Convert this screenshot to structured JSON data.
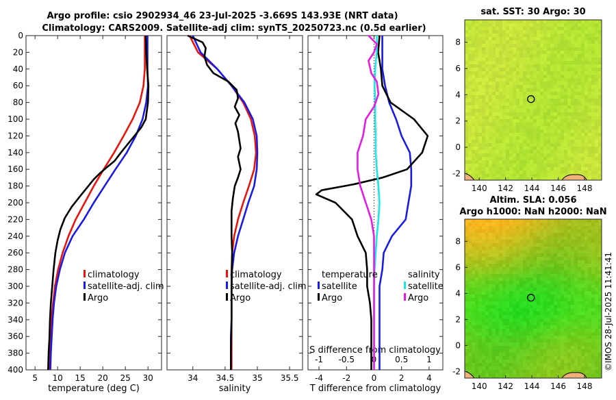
{
  "title": {
    "line1": "Argo profile: csio 2902934_46 23-Jul-2025 -3.669S 143.93E (NRT data)",
    "line2": "Climatology: CARS2009. Satellite-adj clim: synTS_20250723.nc (0.5d earlier)"
  },
  "footer": "©IMOS 28-Jul-2025 11:41:41",
  "colors": {
    "climatology": "#e8150d",
    "satellite": "#1a1ae6",
    "argo": "#000000",
    "argo_sal_diff": "#e619e6",
    "sat_sal_diff": "#19e6e6"
  },
  "chart_data": [
    {
      "type": "line",
      "name": "temperature",
      "xlabel": "temperature (deg C)",
      "ylabel": "depth",
      "xlim": [
        3,
        33
      ],
      "ylim": [
        0,
        400
      ],
      "xticks": [
        5,
        10,
        15,
        20,
        25,
        30
      ],
      "yticks": [
        0,
        20,
        40,
        60,
        80,
        100,
        120,
        140,
        160,
        180,
        200,
        220,
        240,
        260,
        280,
        300,
        320,
        340,
        360,
        380,
        400
      ],
      "legend": [
        "climatology",
        "satellite-adj. clim",
        "Argo"
      ],
      "series": [
        {
          "name": "climatology",
          "color": "#e8150d",
          "points": [
            [
              29.3,
              0
            ],
            [
              29.3,
              40
            ],
            [
              29.0,
              60
            ],
            [
              28.2,
              80
            ],
            [
              26.6,
              100
            ],
            [
              24.6,
              120
            ],
            [
              22.5,
              140
            ],
            [
              20.2,
              160
            ],
            [
              18.0,
              180
            ],
            [
              16.0,
              200
            ],
            [
              14.0,
              220
            ],
            [
              12.4,
              240
            ],
            [
              11.1,
              260
            ],
            [
              10.1,
              280
            ],
            [
              9.4,
              300
            ],
            [
              9.0,
              320
            ],
            [
              8.6,
              340
            ],
            [
              8.4,
              360
            ],
            [
              8.2,
              380
            ],
            [
              8.0,
              400
            ]
          ]
        },
        {
          "name": "satellite-adj. clim",
          "color": "#1a1ae6",
          "points": [
            [
              29.9,
              0
            ],
            [
              29.9,
              40
            ],
            [
              30.0,
              60
            ],
            [
              29.6,
              80
            ],
            [
              28.8,
              100
            ],
            [
              27.3,
              120
            ],
            [
              25.3,
              140
            ],
            [
              22.8,
              160
            ],
            [
              20.4,
              180
            ],
            [
              18.0,
              200
            ],
            [
              15.8,
              220
            ],
            [
              13.3,
              240
            ],
            [
              11.6,
              260
            ],
            [
              10.5,
              280
            ],
            [
              9.7,
              300
            ],
            [
              9.2,
              320
            ],
            [
              8.9,
              340
            ],
            [
              8.7,
              360
            ],
            [
              8.5,
              380
            ],
            [
              8.4,
              400
            ]
          ]
        },
        {
          "name": "Argo",
          "color": "#000000",
          "points": [
            [
              29.5,
              0
            ],
            [
              29.6,
              20
            ],
            [
              29.8,
              40
            ],
            [
              30.1,
              60
            ],
            [
              30.0,
              80
            ],
            [
              29.5,
              100
            ],
            [
              28.5,
              110
            ],
            [
              27.0,
              120
            ],
            [
              25.5,
              130
            ],
            [
              24.0,
              140
            ],
            [
              22.6,
              150
            ],
            [
              20.8,
              158
            ],
            [
              19.3,
              165
            ],
            [
              18.0,
              172
            ],
            [
              16.8,
              180
            ],
            [
              15.0,
              192
            ],
            [
              13.1,
              205
            ],
            [
              11.6,
              218
            ],
            [
              10.6,
              232
            ],
            [
              10.0,
              245
            ],
            [
              9.5,
              260
            ],
            [
              9.1,
              280
            ],
            [
              8.8,
              300
            ],
            [
              8.5,
              320
            ],
            [
              8.3,
              340
            ],
            [
              8.2,
              360
            ],
            [
              8.0,
              380
            ],
            [
              7.9,
              400
            ]
          ]
        }
      ]
    },
    {
      "type": "line",
      "name": "salinity",
      "xlabel": "salinity",
      "ylabel": "depth",
      "xlim": [
        33.6,
        35.7
      ],
      "ylim": [
        0,
        400
      ],
      "xticks": [
        34,
        34.5,
        35,
        35.5
      ],
      "xticklabels": [
        "34",
        "34.5",
        "35",
        "35.5"
      ],
      "legend": [
        "climatology",
        "satellite-adj. clim",
        "Argo"
      ],
      "series": [
        {
          "name": "climatology",
          "color": "#e8150d",
          "points": [
            [
              33.95,
              0
            ],
            [
              34.08,
              20
            ],
            [
              34.38,
              40
            ],
            [
              34.6,
              60
            ],
            [
              34.78,
              80
            ],
            [
              34.9,
              100
            ],
            [
              34.96,
              120
            ],
            [
              34.98,
              140
            ],
            [
              34.95,
              160
            ],
            [
              34.87,
              180
            ],
            [
              34.78,
              200
            ],
            [
              34.7,
              220
            ],
            [
              34.64,
              240
            ],
            [
              34.61,
              260
            ],
            [
              34.6,
              280
            ],
            [
              34.6,
              300
            ],
            [
              34.6,
              320
            ],
            [
              34.6,
              340
            ],
            [
              34.6,
              360
            ],
            [
              34.6,
              380
            ],
            [
              34.6,
              400
            ]
          ]
        },
        {
          "name": "satellite-adj. clim",
          "color": "#1a1ae6",
          "points": [
            [
              34.0,
              0
            ],
            [
              34.12,
              20
            ],
            [
              34.38,
              40
            ],
            [
              34.6,
              60
            ],
            [
              34.8,
              80
            ],
            [
              34.93,
              100
            ],
            [
              34.99,
              120
            ],
            [
              35.0,
              140
            ],
            [
              34.99,
              160
            ],
            [
              34.95,
              180
            ],
            [
              34.86,
              200
            ],
            [
              34.78,
              220
            ],
            [
              34.7,
              240
            ],
            [
              34.64,
              260
            ],
            [
              34.61,
              280
            ],
            [
              34.6,
              300
            ],
            [
              34.6,
              320
            ],
            [
              34.6,
              340
            ],
            [
              34.59,
              360
            ],
            [
              34.59,
              380
            ],
            [
              34.59,
              400
            ]
          ]
        },
        {
          "name": "Argo",
          "color": "#000000",
          "points": [
            [
              33.92,
              0
            ],
            [
              34.15,
              8
            ],
            [
              34.2,
              15
            ],
            [
              34.18,
              25
            ],
            [
              34.22,
              35
            ],
            [
              34.32,
              45
            ],
            [
              34.55,
              55
            ],
            [
              34.68,
              65
            ],
            [
              34.7,
              75
            ],
            [
              34.65,
              85
            ],
            [
              34.72,
              95
            ],
            [
              34.66,
              105
            ],
            [
              34.7,
              115
            ],
            [
              34.72,
              125
            ],
            [
              34.74,
              135
            ],
            [
              34.7,
              145
            ],
            [
              34.74,
              160
            ],
            [
              34.7,
              170
            ],
            [
              34.65,
              180
            ],
            [
              34.62,
              195
            ],
            [
              34.6,
              210
            ],
            [
              34.6,
              240
            ],
            [
              34.61,
              260
            ],
            [
              34.6,
              300
            ],
            [
              34.6,
              340
            ],
            [
              34.59,
              380
            ],
            [
              34.59,
              400
            ]
          ]
        }
      ]
    },
    {
      "type": "line",
      "name": "differences",
      "xlabel": "T difference from climatology",
      "x2label": "S difference from climatology",
      "ylabel": "depth",
      "xlim": [
        -4.8,
        5
      ],
      "ylim": [
        0,
        400
      ],
      "xticks": [
        -4,
        -2,
        0,
        2,
        4
      ],
      "x2ticks": [
        -1,
        -0.5,
        0,
        0.5,
        1
      ],
      "x2ticklabels": [
        "-1",
        "-0.5",
        "0",
        "0.5",
        "1"
      ],
      "legend_temperature_title": "temperature",
      "legend_salinity_title": "salinity",
      "legend_temperature": [
        "satellite",
        "Argo"
      ],
      "legend_salinity": [
        "satellite",
        "Argo"
      ],
      "series": [
        {
          "name": "temperature satellite",
          "color": "#1a1ae6",
          "points": [
            [
              0.6,
              0
            ],
            [
              0.6,
              40
            ],
            [
              0.8,
              60
            ],
            [
              1.1,
              80
            ],
            [
              1.6,
              100
            ],
            [
              2.0,
              120
            ],
            [
              2.6,
              140
            ],
            [
              2.7,
              160
            ],
            [
              2.7,
              180
            ],
            [
              2.5,
              200
            ],
            [
              2.3,
              220
            ],
            [
              1.3,
              240
            ],
            [
              0.7,
              260
            ],
            [
              0.6,
              280
            ],
            [
              0.4,
              300
            ],
            [
              0.4,
              320
            ],
            [
              0.4,
              340
            ],
            [
              0.4,
              360
            ],
            [
              0.4,
              380
            ],
            [
              0.4,
              400
            ]
          ]
        },
        {
          "name": "temperature Argo",
          "color": "#000000",
          "points": [
            [
              0.4,
              0
            ],
            [
              0.3,
              20
            ],
            [
              0.5,
              40
            ],
            [
              0.6,
              60
            ],
            [
              1.2,
              80
            ],
            [
              2.9,
              100
            ],
            [
              3.9,
              120
            ],
            [
              3.5,
              140
            ],
            [
              2.4,
              160
            ],
            [
              0.6,
              170
            ],
            [
              -1.5,
              178
            ],
            [
              -3.8,
              185
            ],
            [
              -4.2,
              190
            ],
            [
              -2.8,
              200
            ],
            [
              -1.6,
              220
            ],
            [
              -1.2,
              240
            ],
            [
              -0.6,
              260
            ],
            [
              -0.5,
              280
            ],
            [
              -0.5,
              300
            ],
            [
              -0.3,
              320
            ],
            [
              -0.2,
              340
            ],
            [
              -0.2,
              360
            ],
            [
              -0.2,
              380
            ],
            [
              -0.2,
              400
            ]
          ]
        },
        {
          "name": "salinity satellite",
          "color": "#19e6e6",
          "points": [
            [
              0.05,
              0
            ],
            [
              0.05,
              20
            ],
            [
              0.02,
              40
            ],
            [
              0.01,
              60
            ],
            [
              0.02,
              80
            ],
            [
              0.02,
              100
            ],
            [
              0.03,
              120
            ],
            [
              0.03,
              140
            ],
            [
              0.05,
              160
            ],
            [
              0.08,
              180
            ],
            [
              0.1,
              200
            ],
            [
              0.08,
              220
            ],
            [
              0.05,
              240
            ],
            [
              0.03,
              260
            ],
            [
              0.01,
              280
            ],
            [
              0.0,
              300
            ],
            [
              0.0,
              340
            ],
            [
              0.0,
              400
            ]
          ]
        },
        {
          "name": "salinity Argo",
          "color": "#e619e6",
          "points": [
            [
              -0.1,
              0
            ],
            [
              0.05,
              10
            ],
            [
              0.0,
              20
            ],
            [
              -0.1,
              30
            ],
            [
              -0.05,
              45
            ],
            [
              0.05,
              55
            ],
            [
              0.08,
              70
            ],
            [
              0.0,
              85
            ],
            [
              -0.15,
              100
            ],
            [
              -0.2,
              120
            ],
            [
              -0.3,
              140
            ],
            [
              -0.3,
              160
            ],
            [
              -0.25,
              180
            ],
            [
              -0.15,
              200
            ],
            [
              -0.05,
              220
            ],
            [
              0.0,
              240
            ],
            [
              0.0,
              260
            ],
            [
              0.0,
              400
            ]
          ]
        }
      ]
    },
    {
      "type": "heatmap",
      "name": "sst-map",
      "title": "sat. SST: 30 Argo: 30",
      "xlim": [
        138.9,
        149.3
      ],
      "ylim": [
        -2.5,
        9.7
      ],
      "xticks": [
        140,
        142,
        144,
        146,
        148
      ],
      "yticks": [
        -2,
        0,
        2,
        4,
        6,
        8
      ],
      "marker": [
        143.93,
        3.67
      ]
    },
    {
      "type": "heatmap",
      "name": "sla-map",
      "title_line1": "Altim. SLA: 0.056",
      "title_line2": "Argo h1000: NaN h2000: NaN",
      "xlim": [
        138.9,
        149.3
      ],
      "ylim": [
        -2.5,
        9.7
      ],
      "xticks": [
        140,
        142,
        144,
        146,
        148
      ],
      "yticks": [
        -2,
        0,
        2,
        4,
        6,
        8
      ],
      "marker": [
        143.93,
        3.67
      ]
    }
  ]
}
